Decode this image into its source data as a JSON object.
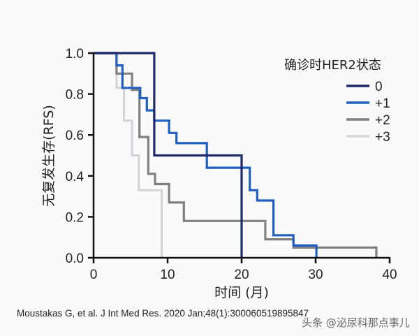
{
  "chart_data": {
    "type": "line",
    "subtype": "kaplan-meier-step",
    "title": "",
    "xlabel": "时间 (月)",
    "ylabel": "无复发生存(RFS)",
    "xlim": [
      0,
      40
    ],
    "ylim": [
      0,
      1.0
    ],
    "xticks": [
      0,
      10,
      20,
      30,
      40
    ],
    "xtick_labels": [
      "0",
      "10",
      "20",
      "30",
      "40"
    ],
    "yticks": [
      0,
      0.2,
      0.4,
      0.6,
      0.8,
      1.0
    ],
    "ytick_labels": [
      "0.0",
      "0.2",
      "0.4",
      "0.6",
      "0.8",
      "1.0"
    ],
    "grid": false,
    "legend_title": "确诊时HER2状态",
    "legend_position": "upper right",
    "series": [
      {
        "name": "0",
        "color": "#1f2a6b",
        "x": [
          0,
          8.2,
          8.2,
          20,
          20
        ],
        "y": [
          1.0,
          1.0,
          0.5,
          0.5,
          0
        ]
      },
      {
        "name": "+1",
        "color": "#1f5fc0",
        "x": [
          0,
          3.1,
          3.1,
          3.9,
          3.9,
          6.3,
          6.3,
          7.2,
          7.2,
          8.2,
          8.2,
          10.2,
          10.2,
          11.2,
          11.2,
          15.3,
          15.3,
          16.1,
          16.1,
          21.1,
          21.1,
          22.1,
          22.1,
          24.3,
          24.3,
          27.0,
          27.0,
          30.1,
          30.1
        ],
        "y": [
          1.0,
          1.0,
          0.94,
          0.94,
          0.83,
          0.83,
          0.78,
          0.78,
          0.72,
          0.72,
          0.67,
          0.67,
          0.61,
          0.61,
          0.56,
          0.56,
          0.44,
          0.44,
          0.44,
          0.44,
          0.33,
          0.33,
          0.28,
          0.28,
          0.11,
          0.11,
          0.06,
          0.06,
          0
        ]
      },
      {
        "name": "+2",
        "color": "#808080",
        "x": [
          0,
          3.1,
          3.1,
          5.2,
          5.2,
          6.2,
          6.2,
          7.4,
          7.4,
          8.3,
          8.3,
          10.2,
          10.2,
          12.2,
          12.2,
          23.2,
          23.2,
          27.0,
          27.0,
          38.2,
          38.2
        ],
        "y": [
          1.0,
          1.0,
          0.9,
          0.9,
          0.82,
          0.82,
          0.59,
          0.59,
          0.41,
          0.41,
          0.36,
          0.36,
          0.27,
          0.27,
          0.18,
          0.18,
          0.09,
          0.09,
          0.05,
          0.05,
          0
        ]
      },
      {
        "name": "+3",
        "color": "#d4d4d8",
        "x": [
          0,
          3.1,
          3.1,
          4.1,
          4.1,
          5.2,
          5.2,
          6.1,
          6.1,
          9.2,
          9.2
        ],
        "y": [
          1.0,
          1.0,
          0.83,
          0.83,
          0.67,
          0.67,
          0.5,
          0.5,
          0.33,
          0.33,
          0
        ]
      }
    ]
  },
  "citation": "Moustakas G, et al. J Int Med Res. 2020 Jan;48(1):300060519895847",
  "watermark": "头条 @泌尿科那点事儿"
}
